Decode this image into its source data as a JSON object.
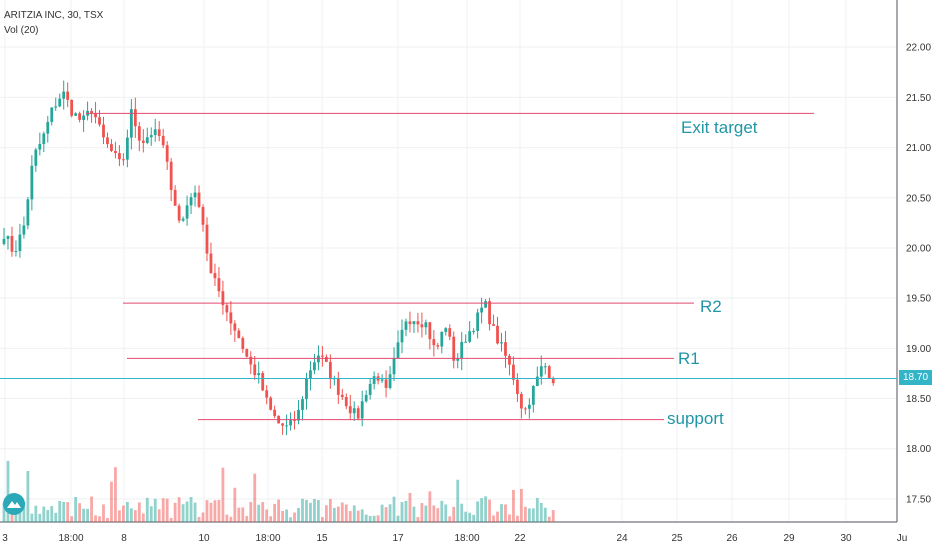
{
  "header": {
    "symbol_line": "ARITZIA INC, 30, TSX",
    "volume_line": "Vol (20)"
  },
  "colors": {
    "up": "#26a69a",
    "down": "#ef5350",
    "level_line": "#e2496f",
    "last_price_line": "#33b5c7",
    "annotation_text": "#2196a6",
    "grid": "#eef0f3"
  },
  "chart_data": {
    "type": "candlestick",
    "y_axis": {
      "ticks": [
        "17.50",
        "18.00",
        "18.50",
        "19.00",
        "19.50",
        "20.00",
        "20.50",
        "21.00",
        "21.50",
        "22.00"
      ],
      "range": [
        17.27,
        22.47
      ]
    },
    "x_axis": {
      "ticks": [
        "3",
        "18:00",
        "8",
        "10",
        "18:00",
        "15",
        "17",
        "18:00",
        "22",
        "24",
        "25",
        "26",
        "29",
        "30",
        "Ju"
      ]
    },
    "last_price": "18.70",
    "annotations": [
      {
        "text": "Exit target",
        "price": 21.34
      },
      {
        "text": "R2",
        "price": 19.45
      },
      {
        "text": "R1",
        "price": 18.9
      },
      {
        "text": "support",
        "price": 18.29
      }
    ],
    "candle_path": [
      [
        20.15,
        19.95,
        20.2,
        20.9,
        21.1,
        21.4,
        21.55,
        21.35
      ],
      [
        21.25,
        21.4,
        21.1,
        20.95,
        20.8,
        21.35,
        21.05,
        21.15
      ],
      [
        21.1,
        20.65,
        20.2,
        20.55,
        20.45,
        19.75
      ],
      [
        19.55,
        19.3,
        19.1,
        18.85,
        18.7
      ],
      [
        18.4,
        18.25,
        18.2,
        18.35,
        18.75,
        18.95
      ],
      [
        18.8,
        18.6,
        18.45,
        18.3,
        18.6,
        18.75,
        18.55
      ],
      [
        18.95,
        19.3,
        19.3,
        19.25,
        18.95,
        19.25
      ],
      [
        18.85,
        19.1,
        19.25,
        19.45,
        19.15,
        18.95
      ],
      [
        18.7,
        18.35,
        18.6,
        18.85,
        18.7
      ]
    ]
  }
}
